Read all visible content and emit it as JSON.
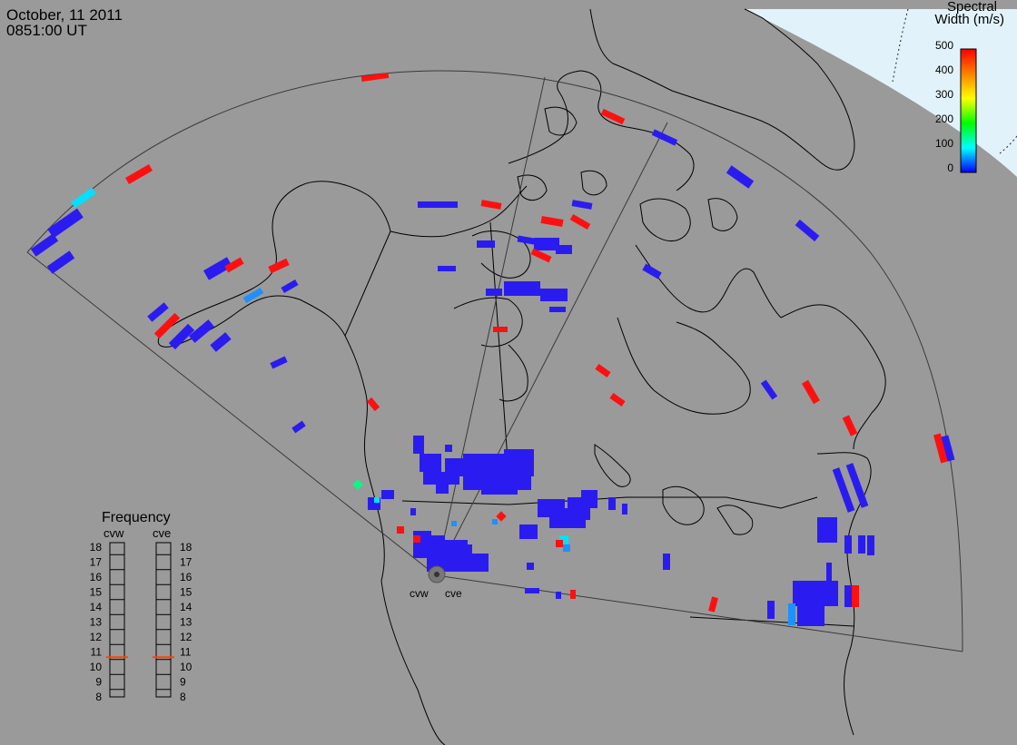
{
  "header": {
    "date": "October, 11 2011",
    "time": "0851:00 UT"
  },
  "colorbar": {
    "title_line1": "Spectral",
    "title_line2": "Width (m/s)",
    "ticks": [
      "500",
      "400",
      "300",
      "200",
      "100",
      "0"
    ],
    "colors": [
      "#ff0000",
      "#ff8000",
      "#ffff00",
      "#00ff00",
      "#00ffff",
      "#0000ff"
    ]
  },
  "frequency_panel": {
    "title": "Frequency",
    "stations": [
      "cvw",
      "cve"
    ],
    "ticks": [
      "18",
      "17",
      "16",
      "15",
      "14",
      "13",
      "12",
      "11",
      "10",
      "9",
      "8"
    ],
    "current_value": 11,
    "indicator_color": "#ff4400"
  },
  "radars": {
    "labels": [
      "cvw",
      "cve"
    ]
  },
  "colors": {
    "background": "#9a9a9a",
    "sunlit_region": "#e2f2fa",
    "echo_low_width": "#2a1cf0",
    "echo_high_width": "#ff1010"
  }
}
